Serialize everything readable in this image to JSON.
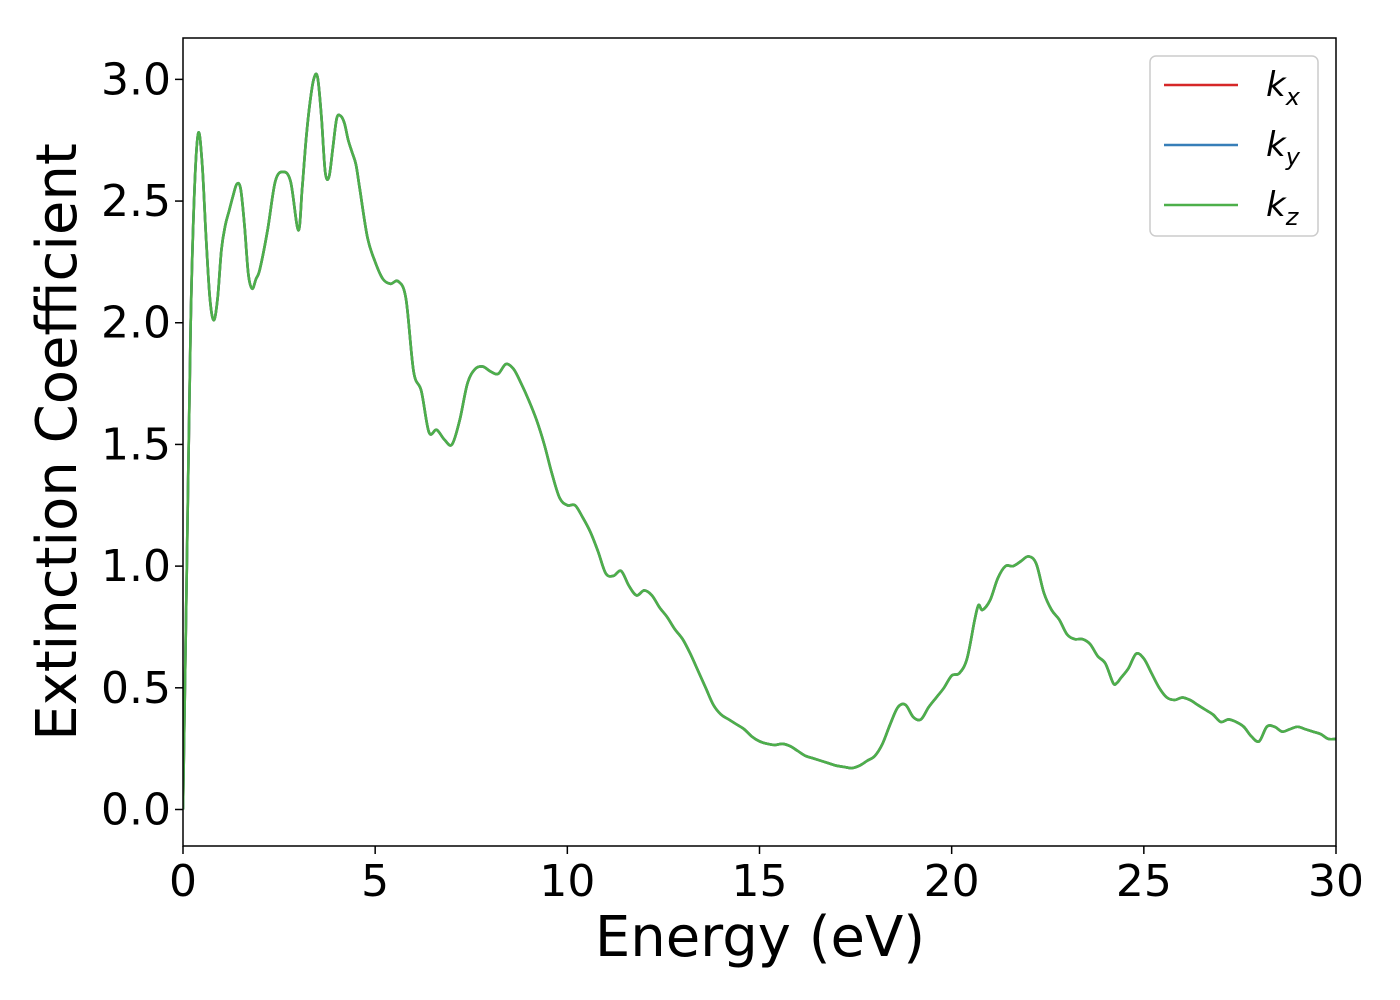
{
  "chart_data": {
    "type": "line",
    "xlabel": "Energy (eV)",
    "ylabel": "Extinction Coefficient",
    "xlim": [
      0,
      30
    ],
    "ylim": [
      -0.15,
      3.17
    ],
    "xticks": [
      0,
      5,
      10,
      15,
      20,
      25,
      30
    ],
    "xtick_labels": [
      "0",
      "5",
      "10",
      "15",
      "20",
      "25",
      "30"
    ],
    "yticks": [
      0.0,
      0.5,
      1.0,
      1.5,
      2.0,
      2.5,
      3.0
    ],
    "ytick_labels": [
      "0.0",
      "0.5",
      "1.0",
      "1.5",
      "2.0",
      "2.5",
      "3.0"
    ],
    "grid": false,
    "legend_position": "top-right",
    "x": [
      0,
      0.1,
      0.2,
      0.3,
      0.4,
      0.5,
      0.6,
      0.7,
      0.8,
      0.9,
      1.0,
      1.1,
      1.2,
      1.3,
      1.4,
      1.5,
      1.6,
      1.7,
      1.8,
      1.9,
      2.0,
      2.2,
      2.4,
      2.6,
      2.8,
      3.0,
      3.1,
      3.2,
      3.3,
      3.4,
      3.5,
      3.6,
      3.7,
      3.8,
      3.9,
      4.0,
      4.1,
      4.2,
      4.3,
      4.4,
      4.5,
      4.6,
      4.8,
      5.0,
      5.2,
      5.4,
      5.6,
      5.8,
      6.0,
      6.2,
      6.4,
      6.6,
      6.8,
      7.0,
      7.2,
      7.4,
      7.6,
      7.8,
      8.0,
      8.2,
      8.4,
      8.6,
      8.8,
      9.0,
      9.2,
      9.4,
      9.6,
      9.8,
      10.0,
      10.2,
      10.4,
      10.6,
      10.8,
      11.0,
      11.2,
      11.4,
      11.6,
      11.8,
      12.0,
      12.2,
      12.4,
      12.6,
      12.8,
      13.0,
      13.2,
      13.4,
      13.6,
      13.8,
      14.0,
      14.2,
      14.4,
      14.6,
      14.8,
      15.0,
      15.2,
      15.4,
      15.6,
      15.8,
      16.0,
      16.2,
      16.4,
      16.6,
      16.8,
      17.0,
      17.2,
      17.4,
      17.6,
      17.8,
      18.0,
      18.2,
      18.4,
      18.6,
      18.8,
      19.0,
      19.2,
      19.4,
      19.6,
      19.8,
      20.0,
      20.2,
      20.4,
      20.6,
      20.7,
      20.8,
      21.0,
      21.2,
      21.4,
      21.6,
      21.8,
      22.0,
      22.2,
      22.4,
      22.6,
      22.8,
      23.0,
      23.2,
      23.4,
      23.6,
      23.8,
      24.0,
      24.2,
      24.3,
      24.4,
      24.6,
      24.8,
      25.0,
      25.2,
      25.4,
      25.6,
      25.8,
      26.0,
      26.2,
      26.4,
      26.6,
      26.8,
      27.0,
      27.2,
      27.4,
      27.6,
      27.8,
      28.0,
      28.2,
      28.4,
      28.6,
      28.8,
      29.0,
      29.2,
      29.4,
      29.6,
      29.8,
      30.0
    ],
    "y": [
      0.0,
      1.0,
      2.0,
      2.55,
      2.78,
      2.65,
      2.35,
      2.1,
      2.01,
      2.1,
      2.3,
      2.4,
      2.46,
      2.52,
      2.57,
      2.55,
      2.4,
      2.2,
      2.14,
      2.18,
      2.22,
      2.38,
      2.58,
      2.62,
      2.58,
      2.38,
      2.55,
      2.75,
      2.9,
      3.0,
      3.01,
      2.85,
      2.62,
      2.6,
      2.72,
      2.84,
      2.85,
      2.82,
      2.75,
      2.7,
      2.65,
      2.55,
      2.35,
      2.25,
      2.18,
      2.16,
      2.17,
      2.1,
      1.8,
      1.72,
      1.55,
      1.56,
      1.52,
      1.5,
      1.6,
      1.75,
      1.81,
      1.82,
      1.8,
      1.79,
      1.83,
      1.81,
      1.75,
      1.68,
      1.6,
      1.5,
      1.38,
      1.28,
      1.25,
      1.25,
      1.2,
      1.14,
      1.06,
      0.97,
      0.96,
      0.98,
      0.92,
      0.88,
      0.9,
      0.88,
      0.83,
      0.79,
      0.74,
      0.7,
      0.64,
      0.57,
      0.5,
      0.43,
      0.39,
      0.37,
      0.35,
      0.33,
      0.3,
      0.28,
      0.27,
      0.265,
      0.27,
      0.26,
      0.24,
      0.22,
      0.21,
      0.2,
      0.19,
      0.18,
      0.175,
      0.17,
      0.18,
      0.2,
      0.22,
      0.27,
      0.35,
      0.42,
      0.43,
      0.38,
      0.37,
      0.42,
      0.46,
      0.5,
      0.55,
      0.56,
      0.62,
      0.78,
      0.84,
      0.82,
      0.86,
      0.95,
      1.0,
      1.0,
      1.02,
      1.04,
      1.01,
      0.89,
      0.82,
      0.78,
      0.72,
      0.7,
      0.7,
      0.68,
      0.63,
      0.6,
      0.52,
      0.52,
      0.54,
      0.58,
      0.64,
      0.62,
      0.56,
      0.5,
      0.46,
      0.45,
      0.46,
      0.45,
      0.43,
      0.41,
      0.39,
      0.36,
      0.37,
      0.36,
      0.34,
      0.3,
      0.28,
      0.34,
      0.34,
      0.32,
      0.33,
      0.34,
      0.33,
      0.32,
      0.31,
      0.29,
      0.29
    ],
    "series": [
      {
        "name": "k_x",
        "label_base": "k",
        "label_sub": "x",
        "color": "#d62728"
      },
      {
        "name": "k_y",
        "label_base": "k",
        "label_sub": "y",
        "color": "#377eb8"
      },
      {
        "name": "k_z",
        "label_base": "k",
        "label_sub": "z",
        "color": "#4daf4a"
      }
    ]
  }
}
